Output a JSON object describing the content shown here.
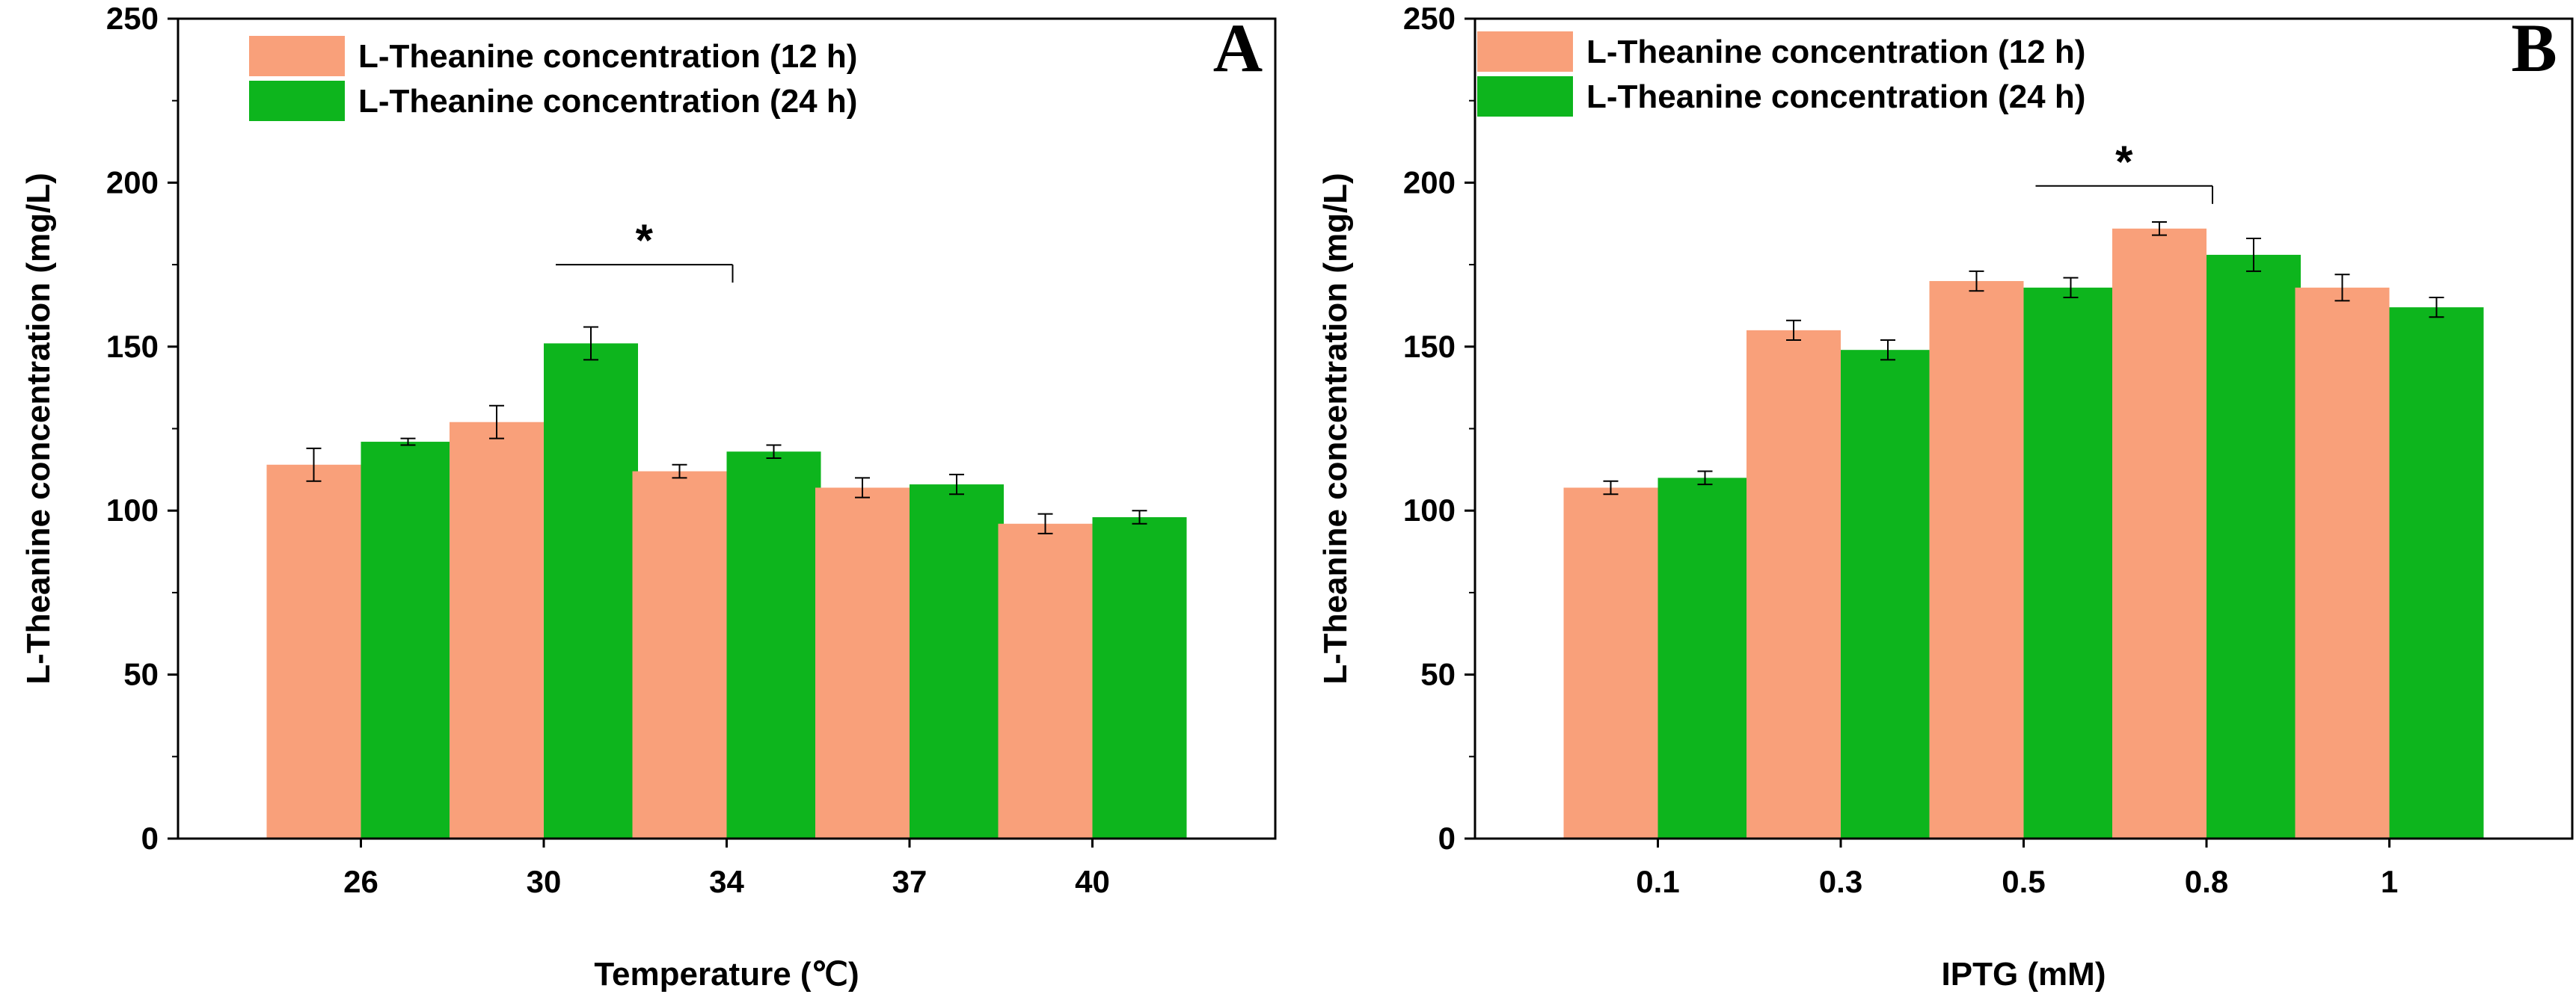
{
  "chart_data": [
    {
      "type": "bar",
      "panel": "A",
      "xlabel": "Temperature (℃)",
      "ylabel": "L-Theanine concentration (mg/L)",
      "ylim": [
        0,
        250
      ],
      "yticks": [
        0,
        50,
        100,
        150,
        200,
        250
      ],
      "categories": [
        "26",
        "30",
        "34",
        "37",
        "40"
      ],
      "series": [
        {
          "name": "L-Theanine concentration (12 h)",
          "color": "#F9A07A",
          "values": [
            114,
            127,
            112,
            107,
            96
          ],
          "errors": [
            5,
            5,
            2,
            3,
            3
          ]
        },
        {
          "name": "L-Theanine concentration (24 h)",
          "color": "#0DB51D",
          "values": [
            121,
            151,
            118,
            108,
            98
          ],
          "errors": [
            1,
            5,
            2,
            3,
            2
          ]
        }
      ],
      "significance": {
        "label": "*",
        "from_category": 1,
        "to_category": 2,
        "y": 175
      },
      "legend_position": "top-left"
    },
    {
      "type": "bar",
      "panel": "B",
      "xlabel": "IPTG (mM)",
      "ylabel": "L-Theanine concentration (mg/L)",
      "ylim": [
        0,
        250
      ],
      "yticks": [
        0,
        50,
        100,
        150,
        200,
        250
      ],
      "categories": [
        "0.1",
        "0.3",
        "0.5",
        "0.8",
        "1"
      ],
      "series": [
        {
          "name": "L-Theanine concentration (12 h)",
          "color": "#F9A07A",
          "values": [
            107,
            155,
            170,
            186,
            168
          ],
          "errors": [
            2,
            3,
            3,
            2,
            4
          ]
        },
        {
          "name": "L-Theanine concentration (24 h)",
          "color": "#0DB51D",
          "values": [
            110,
            149,
            168,
            178,
            162
          ],
          "errors": [
            2,
            3,
            3,
            5,
            3
          ]
        }
      ],
      "significance": {
        "label": "*",
        "from_category": 2,
        "to_category": 3,
        "y": 199
      },
      "legend_position": "top-left"
    }
  ]
}
